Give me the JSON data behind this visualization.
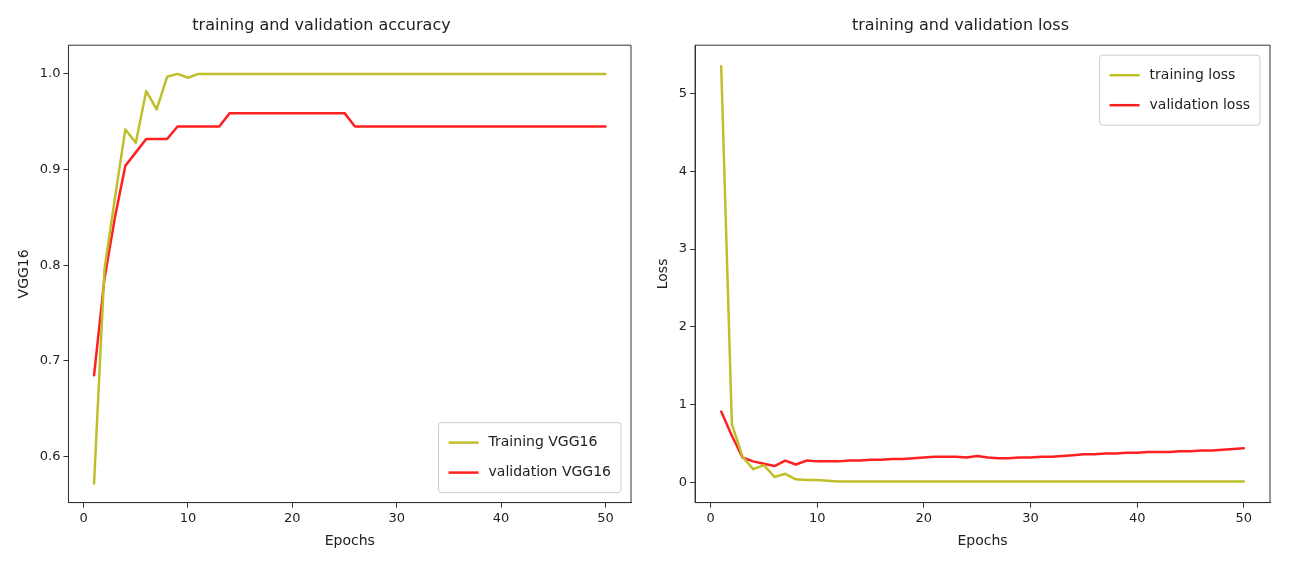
{
  "chart_data": [
    {
      "type": "line",
      "title": "training and validation accuracy",
      "xlabel": "Epochs",
      "ylabel": "VGG16",
      "x": [
        1,
        2,
        3,
        4,
        5,
        6,
        7,
        8,
        9,
        10,
        11,
        12,
        13,
        14,
        15,
        16,
        17,
        18,
        19,
        20,
        21,
        22,
        23,
        24,
        25,
        26,
        27,
        28,
        29,
        30,
        31,
        32,
        33,
        34,
        35,
        36,
        37,
        38,
        39,
        40,
        41,
        42,
        43,
        44,
        45,
        46,
        47,
        48,
        49,
        50
      ],
      "series": [
        {
          "name": "Training VGG16",
          "color": "#bfbf2a",
          "values": [
            0.572,
            0.796,
            0.87,
            0.942,
            0.928,
            0.982,
            0.963,
            0.997,
            1.0,
            0.996,
            1.0,
            1.0,
            1.0,
            1.0,
            1.0,
            1.0,
            1.0,
            1.0,
            1.0,
            1.0,
            1.0,
            1.0,
            1.0,
            1.0,
            1.0,
            1.0,
            1.0,
            1.0,
            1.0,
            1.0,
            1.0,
            1.0,
            1.0,
            1.0,
            1.0,
            1.0,
            1.0,
            1.0,
            1.0,
            1.0,
            1.0,
            1.0,
            1.0,
            1.0,
            1.0,
            1.0,
            1.0,
            1.0,
            1.0,
            1.0
          ]
        },
        {
          "name": "validation VGG16",
          "color": "#ff2020",
          "values": [
            0.685,
            0.786,
            0.85,
            0.904,
            0.918,
            0.932,
            0.932,
            0.932,
            0.945,
            0.945,
            0.945,
            0.945,
            0.945,
            0.959,
            0.959,
            0.959,
            0.959,
            0.959,
            0.959,
            0.959,
            0.959,
            0.959,
            0.959,
            0.959,
            0.959,
            0.945,
            0.945,
            0.945,
            0.945,
            0.945,
            0.945,
            0.945,
            0.945,
            0.945,
            0.945,
            0.945,
            0.945,
            0.945,
            0.945,
            0.945,
            0.945,
            0.945,
            0.945,
            0.945,
            0.945,
            0.945,
            0.945,
            0.945,
            0.945,
            0.945
          ]
        }
      ],
      "xlim": [
        -1.45,
        52.45
      ],
      "xticks": [
        0,
        10,
        20,
        30,
        40,
        50
      ],
      "ylim": [
        0.552,
        1.03
      ],
      "yticks": [
        {
          "value": 0.6,
          "label": "0.6"
        },
        {
          "value": 0.7,
          "label": "0.7"
        },
        {
          "value": 0.8,
          "label": "0.8"
        },
        {
          "value": 0.9,
          "label": "0.9"
        },
        {
          "value": 1.0,
          "label": "1.0"
        }
      ],
      "grid": false,
      "legend": "bottom right",
      "marker": "none",
      "line_style": "solid"
    },
    {
      "type": "line",
      "title": "training and validation loss",
      "xlabel": "Epochs",
      "ylabel": "Loss",
      "x": [
        1,
        2,
        3,
        4,
        5,
        6,
        7,
        8,
        9,
        10,
        11,
        12,
        13,
        14,
        15,
        16,
        17,
        18,
        19,
        20,
        21,
        22,
        23,
        24,
        25,
        26,
        27,
        28,
        29,
        30,
        31,
        32,
        33,
        34,
        35,
        36,
        37,
        38,
        39,
        40,
        41,
        42,
        43,
        44,
        45,
        46,
        47,
        48,
        49,
        50
      ],
      "series": [
        {
          "name": "training loss",
          "color": "#bfbf2a",
          "values": [
            5.35,
            0.75,
            0.33,
            0.17,
            0.22,
            0.07,
            0.11,
            0.04,
            0.03,
            0.03,
            0.02,
            0.01,
            0.01,
            0.01,
            0.01,
            0.01,
            0.01,
            0.01,
            0.01,
            0.01,
            0.01,
            0.01,
            0.01,
            0.01,
            0.01,
            0.01,
            0.01,
            0.01,
            0.01,
            0.01,
            0.01,
            0.01,
            0.01,
            0.01,
            0.01,
            0.01,
            0.01,
            0.01,
            0.01,
            0.01,
            0.01,
            0.01,
            0.01,
            0.01,
            0.01,
            0.01,
            0.01,
            0.01,
            0.01,
            0.01
          ]
        },
        {
          "name": "validation loss",
          "color": "#ff2020",
          "values": [
            0.91,
            0.6,
            0.32,
            0.27,
            0.24,
            0.21,
            0.28,
            0.23,
            0.28,
            0.27,
            0.27,
            0.27,
            0.28,
            0.28,
            0.29,
            0.29,
            0.3,
            0.3,
            0.31,
            0.32,
            0.33,
            0.33,
            0.33,
            0.32,
            0.34,
            0.32,
            0.31,
            0.31,
            0.32,
            0.32,
            0.33,
            0.33,
            0.34,
            0.35,
            0.36,
            0.36,
            0.37,
            0.37,
            0.38,
            0.38,
            0.39,
            0.39,
            0.39,
            0.4,
            0.4,
            0.41,
            0.41,
            0.42,
            0.43,
            0.44
          ]
        }
      ],
      "xlim": [
        -1.45,
        52.45
      ],
      "xticks": [
        0,
        10,
        20,
        30,
        40,
        50
      ],
      "ylim": [
        -0.26,
        5.62
      ],
      "yticks": [
        0,
        1,
        2,
        3,
        4,
        5
      ],
      "grid": false,
      "legend": "top right",
      "marker": "none",
      "line_style": "solid"
    }
  ]
}
